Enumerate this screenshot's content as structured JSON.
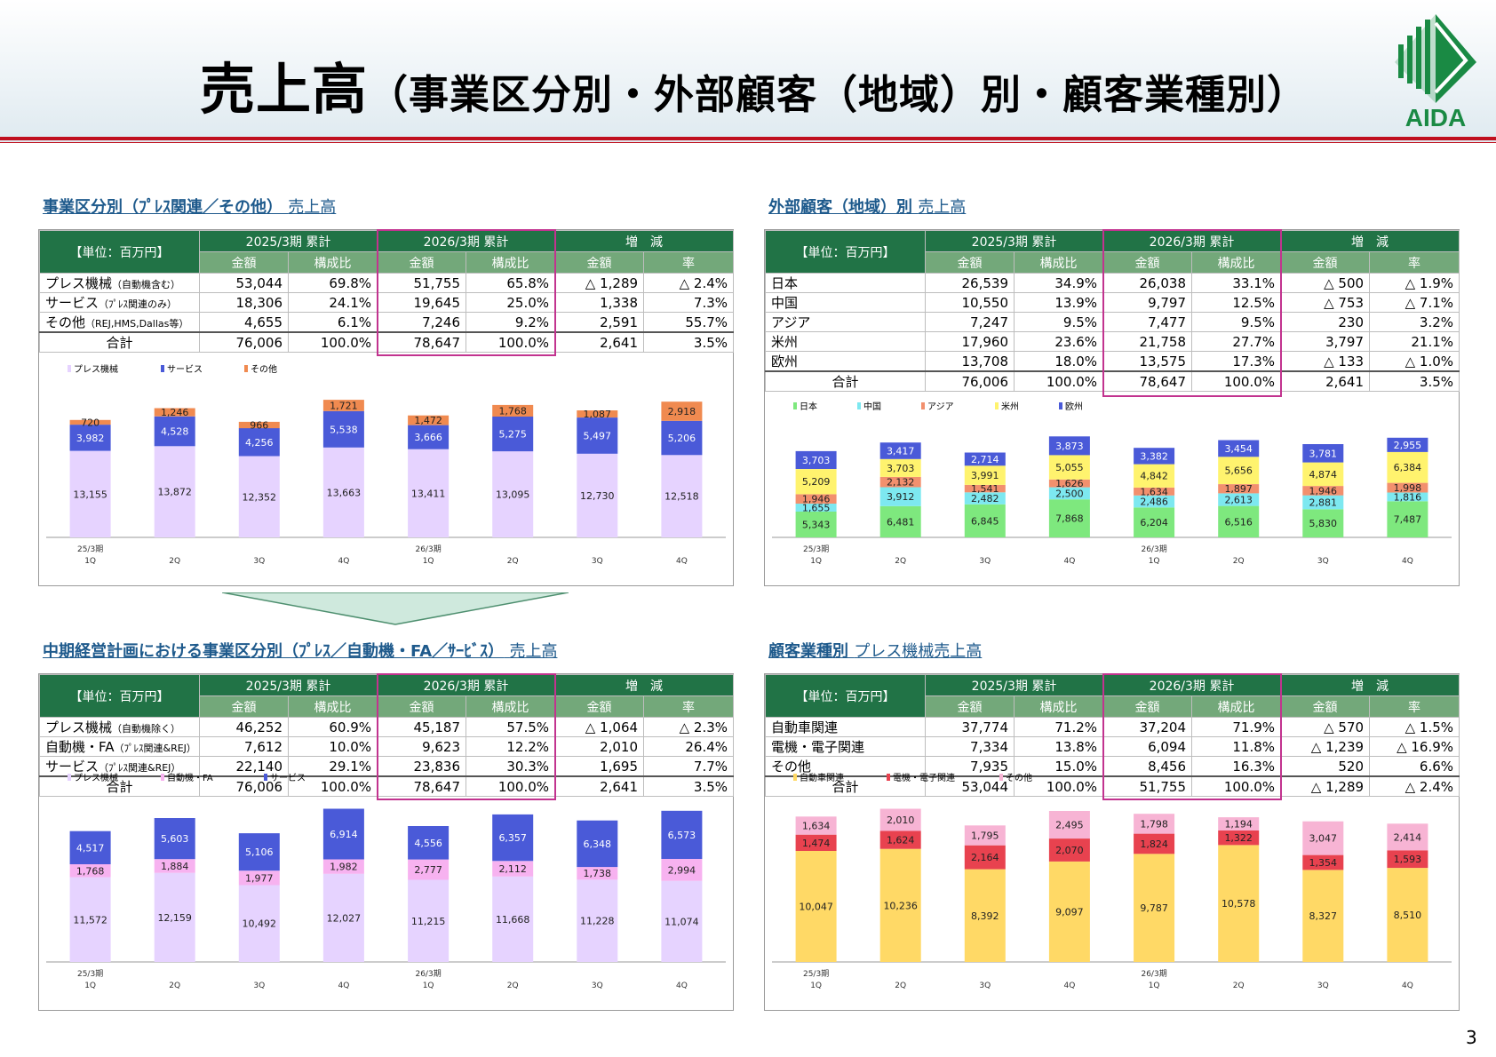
{
  "slide": {
    "title_main": "売上高",
    "title_sub": "（事業区分別・外部顧客（地域）別・顧客業種別）",
    "logo_text": "AIDA",
    "page_number": "3",
    "unit_label": "【単位：百万円】",
    "col_groups": [
      "2025/3期 累計",
      "2026/3期 累計",
      "増　減"
    ],
    "col_sub": [
      "金額",
      "構成比",
      "金額",
      "構成比",
      "金額",
      "率"
    ],
    "total_label": "合計"
  },
  "panels": [
    {
      "title": "事業区分別（ﾌﾟﾚｽ関連／その他）",
      "title_suffix": "売上高",
      "rows": [
        {
          "label": "プレス機械",
          "sub": "（自動機含む）",
          "values": [
            "53,044",
            "69.8%",
            "51,755",
            "65.8%",
            "△ 1,289",
            "△ 2.4%"
          ]
        },
        {
          "label": "サービス",
          "sub": "（ﾌﾟﾚｽ関連のみ）",
          "values": [
            "18,306",
            "24.1%",
            "19,645",
            "25.0%",
            "1,338",
            "7.3%"
          ]
        },
        {
          "label": "その他",
          "sub": "（REJ,HMS,Dallas等）",
          "values": [
            "4,655",
            "6.1%",
            "7,246",
            "9.2%",
            "2,591",
            "55.7%"
          ]
        }
      ],
      "total": [
        "76,006",
        "100.0%",
        "78,647",
        "100.0%",
        "2,641",
        "3.5%"
      ]
    },
    {
      "title": "外部顧客（地域）別",
      "title_suffix": "売上高",
      "rows": [
        {
          "label": "日本",
          "sub": "",
          "values": [
            "26,539",
            "34.9%",
            "26,038",
            "33.1%",
            "△ 500",
            "△ 1.9%"
          ]
        },
        {
          "label": "中国",
          "sub": "",
          "values": [
            "10,550",
            "13.9%",
            "9,797",
            "12.5%",
            "△ 753",
            "△ 7.1%"
          ]
        },
        {
          "label": "アジア",
          "sub": "",
          "values": [
            "7,247",
            "9.5%",
            "7,477",
            "9.5%",
            "230",
            "3.2%"
          ]
        },
        {
          "label": "米州",
          "sub": "",
          "values": [
            "17,960",
            "23.6%",
            "21,758",
            "27.7%",
            "3,797",
            "21.1%"
          ]
        },
        {
          "label": "欧州",
          "sub": "",
          "values": [
            "13,708",
            "18.0%",
            "13,575",
            "17.3%",
            "△ 133",
            "△ 1.0%"
          ]
        }
      ],
      "total": [
        "76,006",
        "100.0%",
        "78,647",
        "100.0%",
        "2,641",
        "3.5%"
      ]
    },
    {
      "title": "中期経営計画における事業区分別（ﾌﾟﾚｽ／自動機・FA／ｻｰﾋﾞｽ）",
      "title_suffix": "売上高",
      "rows": [
        {
          "label": "プレス機械",
          "sub": "（自動機除く）",
          "values": [
            "46,252",
            "60.9%",
            "45,187",
            "57.5%",
            "△ 1,064",
            "△ 2.3%"
          ]
        },
        {
          "label": "自動機・FA",
          "sub": "（ﾌﾟﾚｽ関連&REJ）",
          "values": [
            "7,612",
            "10.0%",
            "9,623",
            "12.2%",
            "2,010",
            "26.4%"
          ]
        },
        {
          "label": "サービス",
          "sub": "（ﾌﾟﾚｽ関連&REJ）",
          "values": [
            "22,140",
            "29.1%",
            "23,836",
            "30.3%",
            "1,695",
            "7.7%"
          ]
        }
      ],
      "total": [
        "76,006",
        "100.0%",
        "78,647",
        "100.0%",
        "2,641",
        "3.5%"
      ]
    },
    {
      "title": "顧客業種別",
      "title_suffix": "プレス機械売上高",
      "rows": [
        {
          "label": "自動車関連",
          "sub": "",
          "values": [
            "37,774",
            "71.2%",
            "37,204",
            "71.9%",
            "△ 570",
            "△ 1.5%"
          ]
        },
        {
          "label": "電機・電子関連",
          "sub": "",
          "values": [
            "7,334",
            "13.8%",
            "6,094",
            "11.8%",
            "△ 1,239",
            "△ 16.9%"
          ]
        },
        {
          "label": "その他",
          "sub": "",
          "values": [
            "7,935",
            "15.0%",
            "8,456",
            "16.3%",
            "520",
            "6.6%"
          ]
        }
      ],
      "total": [
        "53,044",
        "100.0%",
        "51,755",
        "100.0%",
        "△ 1,289",
        "△ 2.4%"
      ]
    }
  ],
  "chart_data": [
    {
      "type": "bar",
      "stacked": true,
      "categories": [
        "25/3期 1Q",
        "2Q",
        "3Q",
        "4Q",
        "26/3期 1Q",
        "2Q",
        "3Q",
        "4Q"
      ],
      "legend_position": "top-left",
      "series": [
        {
          "name": "プレス機械",
          "color": "#e6d3ff",
          "values": [
            13155,
            13872,
            12352,
            13663,
            13411,
            13095,
            12730,
            12518
          ]
        },
        {
          "name": "サービス",
          "color": "#4a5ad8",
          "values": [
            3982,
            4528,
            4256,
            5538,
            3666,
            5275,
            5497,
            5206
          ]
        },
        {
          "name": "その他",
          "color": "#f08a50",
          "values": [
            720,
            1246,
            966,
            1721,
            1472,
            1768,
            1087,
            2918
          ]
        }
      ]
    },
    {
      "type": "bar",
      "stacked": true,
      "categories": [
        "25/3期 1Q",
        "2Q",
        "3Q",
        "4Q",
        "26/3期 1Q",
        "2Q",
        "3Q",
        "4Q"
      ],
      "legend_position": "top-left",
      "series": [
        {
          "name": "日本",
          "color": "#7ee87e",
          "values": [
            5343,
            6481,
            6845,
            7868,
            6204,
            6516,
            5830,
            7487
          ]
        },
        {
          "name": "中国",
          "color": "#7de8f0",
          "values": [
            1655,
            3912,
            2482,
            2500,
            2486,
            2613,
            2881,
            1816
          ]
        },
        {
          "name": "アジア",
          "color": "#f2906e",
          "values": [
            1946,
            2132,
            1541,
            1626,
            1634,
            1897,
            1946,
            1998
          ]
        },
        {
          "name": "米州",
          "color": "#fff36e",
          "values": [
            5209,
            3703,
            3991,
            5055,
            4842,
            5656,
            4874,
            6384
          ]
        },
        {
          "name": "欧州",
          "color": "#4a5ad8",
          "values": [
            3703,
            3417,
            2714,
            3873,
            3382,
            3454,
            3781,
            2955
          ]
        }
      ]
    },
    {
      "type": "bar",
      "stacked": true,
      "categories": [
        "25/3期 1Q",
        "2Q",
        "3Q",
        "4Q",
        "26/3期 1Q",
        "2Q",
        "3Q",
        "4Q"
      ],
      "legend_position": "top-left",
      "series": [
        {
          "name": "プレス機械",
          "color": "#e6d3ff",
          "values": [
            11572,
            12159,
            10492,
            12027,
            11215,
            11668,
            11228,
            11074
          ]
        },
        {
          "name": "自動機・FA",
          "color": "#f7b2f0",
          "values": [
            1768,
            1884,
            1977,
            1982,
            2777,
            2112,
            1738,
            2994
          ]
        },
        {
          "name": "サービス",
          "color": "#4a5ad8",
          "values": [
            4517,
            5603,
            5106,
            6914,
            4556,
            6357,
            6348,
            6573
          ]
        }
      ]
    },
    {
      "type": "bar",
      "stacked": true,
      "categories": [
        "25/3期 1Q",
        "2Q",
        "3Q",
        "4Q",
        "26/3期 1Q",
        "2Q",
        "3Q",
        "4Q"
      ],
      "legend_position": "top-left",
      "series": [
        {
          "name": "自動車関連",
          "color": "#ffd966",
          "values": [
            10047,
            10236,
            8392,
            9097,
            9787,
            10578,
            8327,
            8510
          ]
        },
        {
          "name": "電機・電子関連",
          "color": "#e8424f",
          "values": [
            1474,
            1624,
            2164,
            2070,
            1824,
            1322,
            1354,
            1593
          ]
        },
        {
          "name": "その他",
          "color": "#f7b4d4",
          "values": [
            1634,
            2010,
            1795,
            2495,
            1798,
            1194,
            3047,
            2414
          ]
        }
      ]
    }
  ]
}
